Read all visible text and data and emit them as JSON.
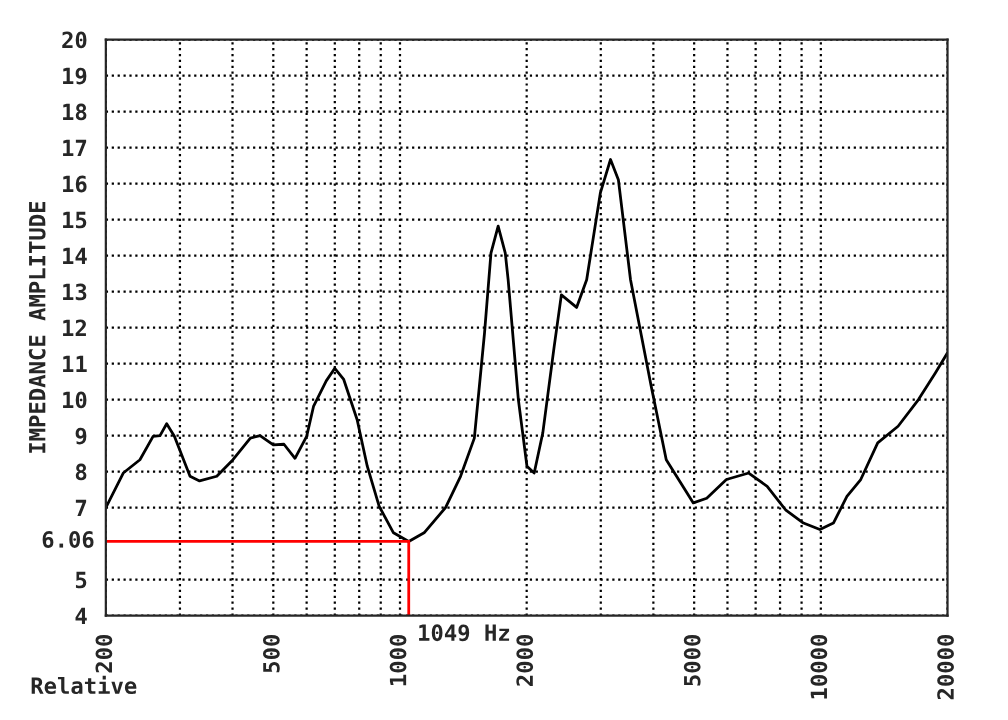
{
  "chart_data": {
    "type": "line",
    "ylabel": "IMPEDANCE AMPLITUDE",
    "log": "x",
    "grid": true,
    "marker": "none",
    "line_style": "solid",
    "x": [
      200,
      220,
      241,
      259,
      269,
      279,
      291,
      317,
      334,
      367,
      401,
      441,
      465,
      500,
      530,
      563,
      600,
      623,
      668,
      700,
      735,
      791,
      836,
      892,
      965,
      1049,
      1141,
      1283,
      1393,
      1502,
      1588,
      1645,
      1711,
      1779,
      1807,
      1911,
      2003,
      2084,
      2184,
      2325,
      2418,
      2628,
      2777,
      2993,
      3164,
      3303,
      3530,
      3953,
      4292,
      4977,
      5356,
      5965,
      6739,
      7456,
      8243,
      9093,
      9950,
      10712,
      11534,
      12440,
      13650,
      15260,
      17060,
      18710,
      20000
    ],
    "series": [
      {
        "color": "#000000",
        "values": [
          7.0,
          7.96,
          8.33,
          8.98,
          9.0,
          9.33,
          8.98,
          7.87,
          7.74,
          7.87,
          8.33,
          8.93,
          9.0,
          8.74,
          8.76,
          8.37,
          8.98,
          9.81,
          10.52,
          10.87,
          10.56,
          9.44,
          8.15,
          7.04,
          6.3,
          6.06,
          6.3,
          7.0,
          7.87,
          8.93,
          11.85,
          14.07,
          14.82,
          14.07,
          13.33,
          10.0,
          8.15,
          7.96,
          9.07,
          11.48,
          12.91,
          12.56,
          13.33,
          15.74,
          16.67,
          16.11,
          13.33,
          10.37,
          8.33,
          7.13,
          7.26,
          7.78,
          7.96,
          7.59,
          6.94,
          6.57,
          6.39,
          6.57,
          7.31,
          7.78,
          8.8,
          9.26,
          10.0,
          10.74,
          11.3
        ]
      }
    ],
    "xlim": [
      200,
      20000
    ],
    "ylim": [
      4,
      20
    ],
    "xticks": [
      200,
      {
        "value": 300,
        "label": null
      },
      {
        "value": 400,
        "label": null
      },
      500,
      {
        "value": 600,
        "label": null
      },
      {
        "value": 700,
        "label": null
      },
      {
        "value": 800,
        "label": null
      },
      {
        "value": 900,
        "label": null
      },
      1000,
      2000,
      {
        "value": 3000,
        "label": null
      },
      {
        "value": 4000,
        "label": null
      },
      5000,
      {
        "value": 6000,
        "label": null
      },
      {
        "value": 7000,
        "label": null
      },
      {
        "value": 8000,
        "label": null
      },
      {
        "value": 9000,
        "label": null
      },
      10000,
      20000
    ],
    "yticks": [
      4,
      5,
      7,
      8,
      9,
      10,
      11,
      12,
      13,
      14,
      15,
      16,
      17,
      18,
      19,
      20
    ],
    "ref_lines": [
      {
        "axis": "y",
        "value": 6.06,
        "label": "6.06",
        "color": "#ff0000"
      },
      {
        "axis": "x",
        "value": 1049,
        "label": "1049 Hz",
        "color": "#ff0000"
      }
    ],
    "annotations": [
      "Relative"
    ]
  }
}
